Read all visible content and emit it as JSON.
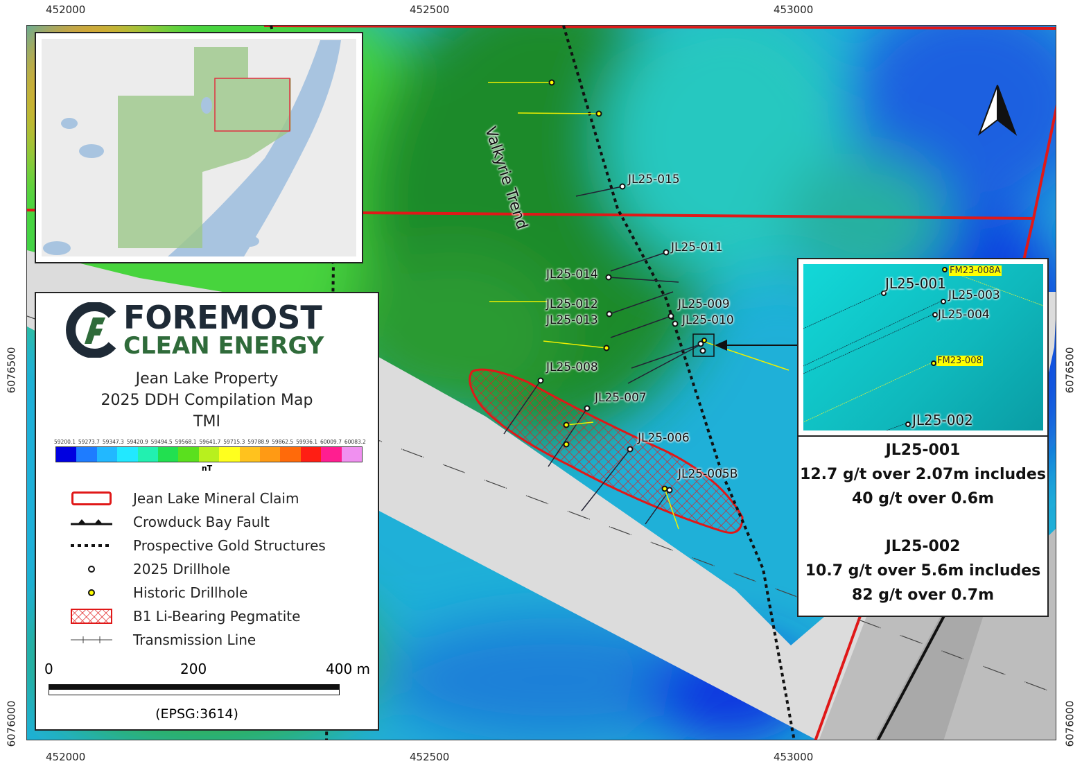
{
  "axes": {
    "x_ticks": [
      "452000",
      "452500",
      "453000"
    ],
    "y_ticks": [
      "6076500",
      "6076000"
    ]
  },
  "map": {
    "trend_label": "Valkyrie Trend",
    "drillholes_2025": [
      "JL25-015",
      "JL25-011",
      "JL25-014",
      "JL25-012",
      "JL25-013",
      "JL25-009",
      "JL25-010",
      "JL25-008",
      "JL25-007",
      "JL25-006",
      "JL25-005B"
    ]
  },
  "legend": {
    "logo_line1": "FOREMOST",
    "logo_line2": "CLEAN ENERGY",
    "title1": "Jean Lake Property",
    "title2": "2025 DDH Compilation Map",
    "title3": "TMI",
    "colorbar_labels": [
      "59200.1",
      "59273.7",
      "59347.3",
      "59420.9",
      "59494.5",
      "59568.1",
      "59641.7",
      "59715.3",
      "59788.9",
      "59862.5",
      "59936.1",
      "60009.7",
      "60083.2"
    ],
    "colorbar_colors": [
      "#0000e0",
      "#1e7cff",
      "#22b8ff",
      "#22e8ff",
      "#22f0b0",
      "#22e050",
      "#5ae01e",
      "#b8f01e",
      "#ffff1e",
      "#ffc21e",
      "#ff9a14",
      "#ff6a0a",
      "#ff1e14",
      "#ff1e90",
      "#f090f0"
    ],
    "colorbar_unit": "nT",
    "items": [
      "Jean Lake Mineral Claim",
      "Crowduck Bay Fault",
      "Prospective Gold Structures",
      "2025 Drillhole",
      "Historic Drillhole",
      "B1 Li-Bearing Pegmatite",
      "Transmission Line"
    ],
    "scale": [
      "0",
      "200",
      "400 m"
    ],
    "crs": "(EPSG:3614)"
  },
  "callout": {
    "inset_labels": [
      "JL25-001",
      "JL25-003",
      "JL25-004",
      "JL25-002"
    ],
    "historic_labels": [
      "FM23-008A",
      "FM23-008"
    ],
    "result1_title": "JL25-001",
    "result1_line1": "12.7 g/t over 2.07m includes",
    "result1_line2": "40 g/t over 0.6m",
    "result2_title": "JL25-002",
    "result2_line1": "10.7 g/t over 5.6m includes",
    "result2_line2": "82 g/t over 0.7m"
  }
}
